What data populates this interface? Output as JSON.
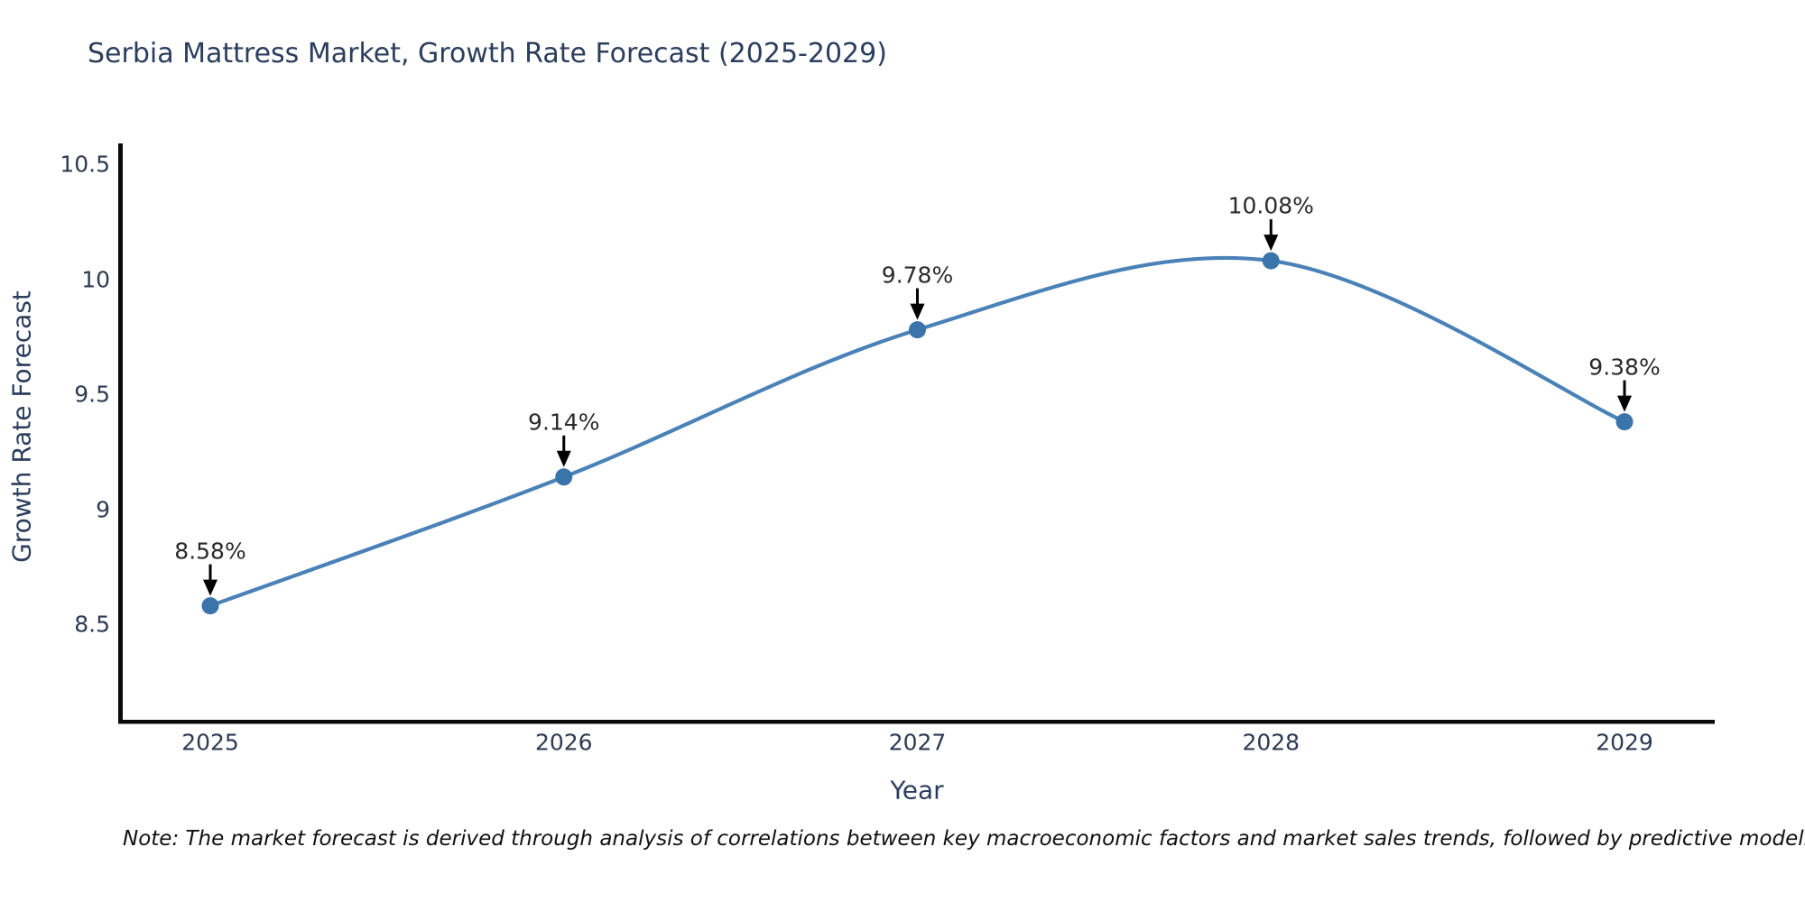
{
  "chart_data": {
    "type": "line",
    "title": "Serbia Mattress Market, Growth Rate Forecast (2025-2029)",
    "x": [
      "2025",
      "2026",
      "2027",
      "2028",
      "2029"
    ],
    "values": [
      8.58,
      9.14,
      9.78,
      10.08,
      9.38
    ],
    "point_labels": [
      "8.58%",
      "9.14%",
      "9.78%",
      "10.08%",
      "9.38%"
    ],
    "xlabel": "Year",
    "ylabel": "Growth Rate Forecast",
    "yticks": [
      8.5,
      9,
      9.5,
      10,
      10.5
    ],
    "ytick_labels": [
      "8.5",
      "9",
      "9.5",
      "10",
      "10.5"
    ],
    "ylim": [
      8.08,
      10.59
    ],
    "grid": false,
    "legend": false,
    "line_style": "smooth-spline",
    "marker_style": "circle",
    "annotation_style": "value-label-with-down-arrow",
    "line_color": "#4a82b8",
    "marker_color": "#3b73ab",
    "arrow_color": "#000000",
    "axis_color": "#0a0a0a",
    "text_color": "#2e3b52"
  },
  "note": "Note: The market forecast is derived through analysis of correlations between key macroeconomic factors and market sales trends, followed by predictive modeling to project future sal"
}
